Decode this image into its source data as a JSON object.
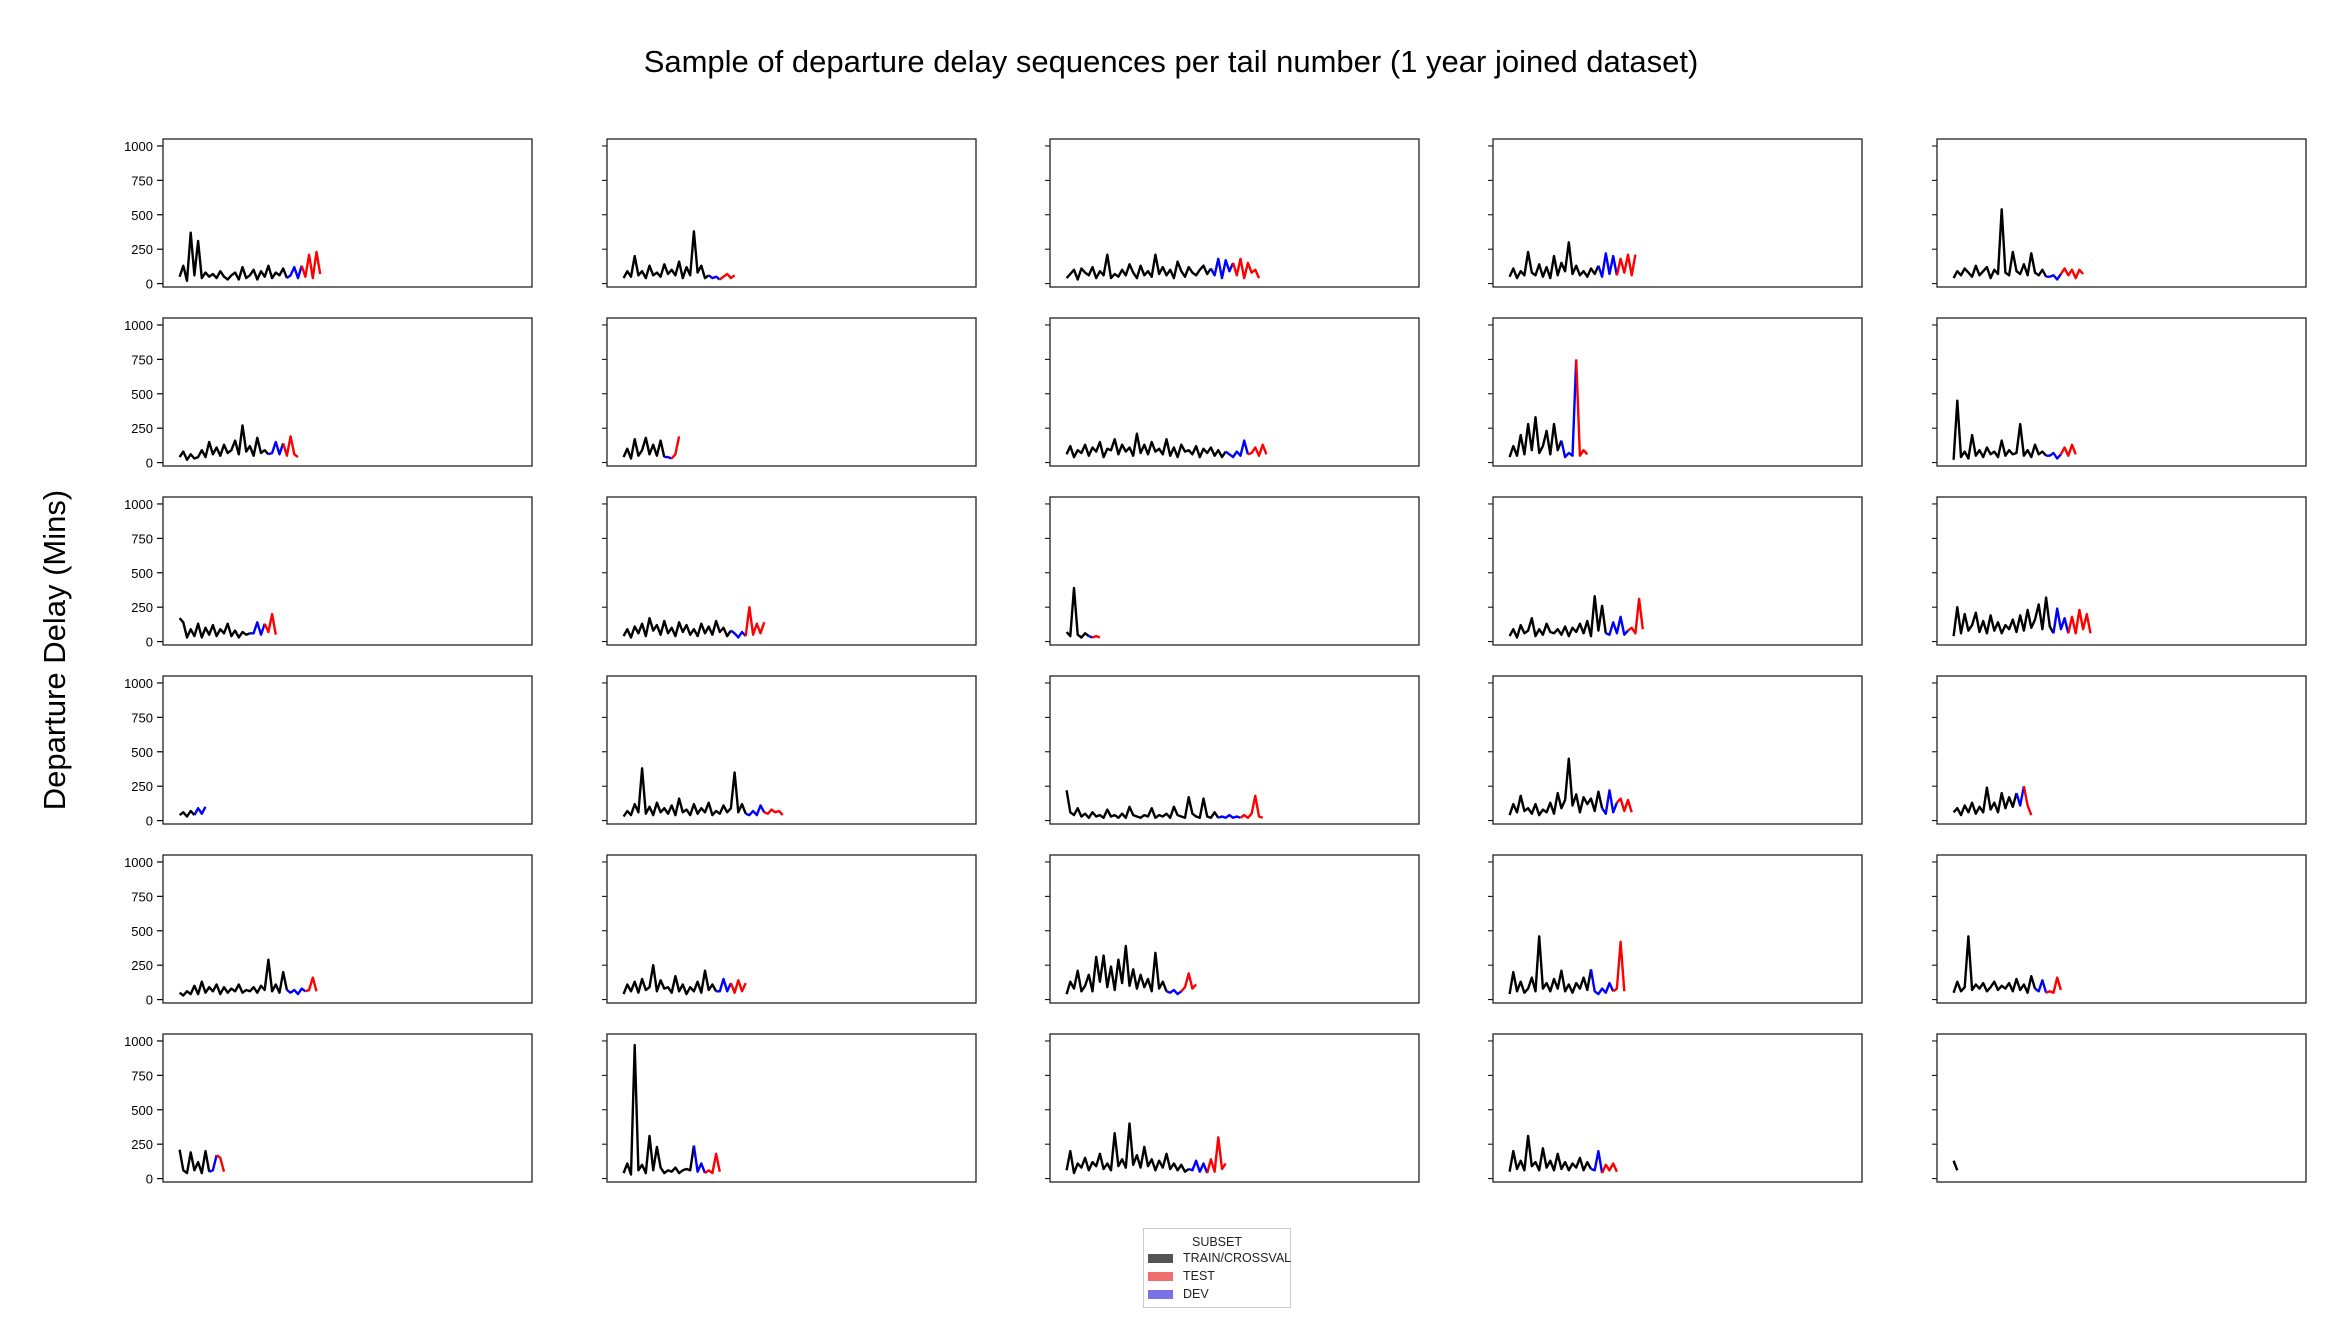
{
  "title": "Sample of departure delay sequences per tail number (1 year joined dataset)",
  "ylabel": "Departure Delay (Mins)",
  "legend": {
    "title": "SUBSET",
    "items": [
      {
        "label": "TRAIN/CROSSVAL",
        "color": "#555555"
      },
      {
        "label": "TEST",
        "color": "#ef6f6f"
      },
      {
        "label": "DEV",
        "color": "#7a72e6"
      }
    ]
  },
  "chart_data": {
    "type": "line",
    "layout": "small multiples, 6 rows x 5 columns, shared y axis",
    "ylim": [
      0,
      1000
    ],
    "yticks": [
      0,
      250,
      500,
      750,
      1000
    ],
    "x_ticks_labeled": false,
    "series_colors": {
      "train": "#000000",
      "dev": "#0000ff",
      "test": "#ff0000"
    },
    "panels": [
      {
        "train": [
          50,
          130,
          20,
          370,
          60,
          310,
          40,
          80,
          50,
          70,
          40,
          90,
          50,
          30,
          60,
          80,
          30,
          120,
          40,
          60,
          100,
          30,
          90,
          50,
          130,
          40,
          80,
          60,
          110,
          40
        ],
        "dev": [
          60,
          120,
          40,
          130
        ],
        "test": [
          50,
          210,
          40,
          230,
          70
        ]
      },
      {
        "train": [
          40,
          90,
          50,
          200,
          60,
          90,
          40,
          130,
          60,
          80,
          50,
          140,
          70,
          100,
          60,
          160,
          40,
          120,
          60,
          380,
          80,
          130,
          40,
          60
        ],
        "dev": [
          40,
          50,
          30
        ],
        "test": [
          50,
          70,
          40,
          60
        ]
      },
      {
        "train": [
          40,
          70,
          100,
          30,
          110,
          80,
          60,
          120,
          40,
          90,
          60,
          210,
          40,
          70,
          50,
          100,
          60,
          140,
          80,
          40,
          130,
          60,
          90,
          50,
          210,
          70,
          120,
          60,
          100,
          40,
          160,
          90,
          50,
          120,
          80,
          60,
          100,
          130,
          70,
          110
        ],
        "dev": [
          60,
          180,
          40,
          170,
          90,
          150
        ],
        "test": [
          60,
          180,
          40,
          150,
          80,
          100,
          40
        ]
      },
      {
        "train": [
          50,
          110,
          40,
          90,
          60,
          230,
          80,
          60,
          140,
          50,
          120,
          40,
          200,
          60,
          150,
          90,
          300,
          70,
          130,
          60,
          90,
          50,
          110,
          70,
          130
        ],
        "dev": [
          50,
          220,
          70,
          200,
          60
        ],
        "test": [
          180,
          80,
          210,
          60,
          210
        ]
      },
      {
        "train": [
          40,
          90,
          60,
          110,
          80,
          50,
          130,
          60,
          90,
          120,
          40,
          100,
          70,
          540,
          80,
          60,
          230,
          90,
          70,
          140,
          60,
          220,
          80,
          60,
          100,
          50
        ],
        "dev": [
          50,
          60,
          30,
          70
        ],
        "test": [
          110,
          60,
          100,
          40,
          100,
          70
        ]
      },
      {
        "train": [
          40,
          80,
          20,
          60,
          30,
          40,
          90,
          40,
          150,
          60,
          110,
          50,
          130,
          70,
          90,
          160,
          60,
          270,
          80,
          120,
          50,
          180,
          70,
          90,
          60
        ],
        "dev": [
          70,
          150,
          60,
          140
        ],
        "test": [
          50,
          190,
          60,
          40
        ]
      },
      {
        "train": [
          40,
          100,
          30,
          170,
          50,
          90,
          180,
          60,
          130,
          50,
          160,
          40
        ],
        "dev": [
          40,
          30
        ],
        "test": [
          60,
          190
        ]
      },
      {
        "train": [
          60,
          120,
          40,
          90,
          70,
          130,
          50,
          110,
          80,
          150,
          40,
          100,
          90,
          170,
          60,
          130,
          80,
          110,
          50,
          210,
          70,
          130,
          60,
          150,
          80,
          100,
          60,
          170,
          50,
          110,
          40,
          130,
          80,
          90,
          60,
          120,
          40,
          100,
          70,
          110,
          50,
          90,
          40,
          80
        ],
        "dev": [
          60,
          40,
          80,
          50,
          160,
          60
        ],
        "test": [
          70,
          110,
          50,
          130,
          60
        ]
      },
      {
        "train": [
          40,
          120,
          50,
          200,
          60,
          280,
          90,
          330,
          70,
          120,
          230,
          60,
          280,
          90,
          160
        ],
        "dev": [
          40,
          70,
          50,
          750
        ],
        "test": [
          50,
          90,
          60
        ]
      },
      {
        "train": [
          20,
          450,
          40,
          80,
          30,
          200,
          50,
          90,
          40,
          110,
          60,
          80,
          40,
          160,
          50,
          90,
          60,
          70,
          280,
          50,
          90,
          40,
          130,
          60,
          80,
          50
        ],
        "dev": [
          50,
          70,
          30,
          60
        ],
        "test": [
          110,
          50,
          130,
          60
        ]
      },
      {
        "train": [
          170,
          140,
          30,
          90,
          40,
          130,
          30,
          100,
          50,
          120,
          40,
          90,
          60,
          130,
          40,
          80,
          30,
          70,
          50,
          60
        ],
        "dev": [
          60,
          140,
          50,
          130
        ],
        "test": [
          70,
          200,
          50
        ]
      },
      {
        "train": [
          40,
          90,
          30,
          110,
          60,
          130,
          40,
          170,
          80,
          120,
          50,
          150,
          60,
          100,
          40,
          140,
          70,
          120,
          50,
          90,
          40,
          130,
          60,
          110,
          50,
          150,
          70,
          100,
          40,
          80
        ],
        "dev": [
          60,
          30,
          70,
          40
        ],
        "test": [
          250,
          50,
          130,
          60,
          140
        ]
      },
      {
        "train": [
          70,
          40,
          390,
          50,
          30,
          60,
          40
        ],
        "dev": [
          30
        ],
        "test": [
          40,
          30
        ]
      },
      {
        "train": [
          40,
          90,
          30,
          120,
          60,
          80,
          170,
          40,
          90,
          50,
          130,
          70,
          60,
          90,
          50,
          110,
          40,
          100,
          70,
          130,
          60,
          150,
          40,
          330,
          80,
          260,
          60
        ],
        "dev": [
          50,
          140,
          60,
          180,
          50,
          80
        ],
        "test": [
          100,
          60,
          310,
          90
        ]
      },
      {
        "train": [
          40,
          250,
          60,
          200,
          80,
          120,
          210,
          70,
          150,
          60,
          190,
          80,
          140,
          60,
          120,
          90,
          160,
          70,
          190,
          80,
          230,
          100,
          160,
          270,
          90,
          320,
          110,
          60
        ],
        "dev": [
          240,
          90,
          170,
          60
        ],
        "test": [
          180,
          60,
          230,
          90,
          200,
          60
        ]
      },
      {
        "train": [
          40,
          60,
          30,
          70,
          40
        ],
        "dev": [
          90,
          50,
          100
        ]
      },
      {
        "train": [
          30,
          70,
          40,
          120,
          60,
          380,
          50,
          100,
          40,
          130,
          60,
          90,
          50,
          110,
          40,
          160,
          60,
          80,
          40,
          120,
          50,
          90,
          60,
          130,
          40,
          70,
          50,
          110,
          60,
          90,
          350,
          60,
          120,
          50
        ],
        "dev": [
          40,
          70,
          40,
          110,
          60
        ],
        "test": [
          50,
          80,
          60,
          70,
          40
        ]
      },
      {
        "train": [
          220,
          60,
          40,
          90,
          30,
          50,
          20,
          60,
          30,
          40,
          20,
          80,
          30,
          40,
          20,
          50,
          20,
          100,
          40,
          30,
          20,
          40,
          30,
          90,
          20,
          40,
          30,
          50,
          20,
          100,
          40,
          30,
          20,
          170,
          50,
          30,
          20,
          160,
          30,
          20,
          60,
          20
        ],
        "dev": [
          30,
          20,
          40,
          20,
          30,
          20
        ],
        "test": [
          40,
          20,
          50,
          180,
          30,
          20
        ]
      },
      {
        "train": [
          40,
          120,
          60,
          180,
          70,
          90,
          50,
          120,
          40,
          80,
          60,
          130,
          50,
          200,
          90,
          150,
          450,
          110,
          190,
          60,
          170,
          120,
          160,
          70,
          210,
          90
        ],
        "dev": [
          50,
          220,
          60,
          130
        ],
        "test": [
          160,
          70,
          150,
          60
        ]
      },
      {
        "train": [
          60,
          90,
          40,
          110,
          60,
          130,
          50,
          100,
          60,
          240,
          80,
          130,
          60,
          200,
          90,
          170,
          100,
          200
        ],
        "dev": [
          110,
          250
        ],
        "test": [
          110,
          40
        ]
      },
      {
        "train": [
          50,
          30,
          60,
          40,
          100,
          40,
          130,
          50,
          90,
          60,
          110,
          40,
          90,
          50,
          80,
          60,
          110,
          50,
          70,
          60,
          90,
          50,
          100,
          70,
          290,
          60,
          110,
          50,
          200,
          70
        ],
        "dev": [
          50,
          70,
          40,
          80,
          60
        ],
        "test": [
          70,
          160,
          60
        ]
      },
      {
        "train": [
          40,
          110,
          60,
          130,
          50,
          150,
          70,
          90,
          250,
          60,
          140,
          80,
          90,
          50,
          170,
          60,
          110,
          40,
          90,
          60,
          130,
          50,
          210,
          70,
          110,
          60
        ],
        "dev": [
          60,
          150,
          60,
          120
        ],
        "test": [
          50,
          140,
          60,
          120
        ]
      },
      {
        "train": [
          40,
          130,
          80,
          210,
          60,
          100,
          180,
          60,
          310,
          130,
          320,
          90,
          240,
          70,
          290,
          120,
          390,
          100,
          220,
          80,
          180,
          90,
          150,
          60,
          340,
          80,
          130,
          60
        ],
        "dev": [
          50,
          70,
          40,
          60
        ],
        "test": [
          90,
          190,
          80,
          110
        ]
      },
      {
        "train": [
          40,
          200,
          60,
          130,
          50,
          80,
          160,
          60,
          460,
          80,
          120,
          60,
          150,
          80,
          210,
          60,
          110,
          50,
          120,
          80,
          160,
          70,
          220
        ],
        "dev": [
          60,
          40,
          80,
          50,
          120,
          60
        ],
        "test": [
          80,
          420,
          60
        ]
      },
      {
        "train": [
          50,
          130,
          60,
          90,
          460,
          70,
          110,
          80,
          120,
          60,
          90,
          130,
          70,
          100,
          80,
          120,
          60,
          150,
          70,
          110,
          50,
          170,
          80
        ],
        "dev": [
          60,
          140,
          50
        ],
        "test": [
          60,
          50,
          160,
          70
        ]
      },
      {
        "train": [
          210,
          60,
          40,
          190,
          60,
          120,
          40,
          200,
          50
        ],
        "dev": [
          60,
          170
        ],
        "test": [
          150,
          50
        ]
      },
      {
        "train": [
          40,
          110,
          30,
          970,
          60,
          100,
          40,
          310,
          60,
          230,
          80,
          40,
          60,
          50,
          80,
          40,
          60,
          70,
          60,
          240
        ],
        "dev": [
          50,
          110,
          40
        ],
        "test": [
          60,
          40,
          180,
          50
        ]
      },
      {
        "train": [
          60,
          200,
          40,
          110,
          80,
          150,
          60,
          120,
          90,
          180,
          70,
          110,
          60,
          330,
          90,
          140,
          80,
          400,
          100,
          170,
          80,
          230,
          90,
          140,
          60,
          130,
          80,
          180,
          70,
          110,
          60,
          100,
          50,
          70
        ],
        "dev": [
          60,
          130,
          50,
          110,
          40
        ],
        "test": [
          140,
          50,
          300,
          70,
          110
        ]
      },
      {
        "train": [
          50,
          200,
          70,
          130,
          60,
          310,
          90,
          120,
          60,
          220,
          80,
          130,
          60,
          180,
          70,
          120,
          60,
          110,
          80,
          150,
          60,
          120,
          70
        ],
        "dev": [
          60,
          200,
          40
        ],
        "test": [
          100,
          60,
          110,
          50
        ]
      },
      {
        "train": [
          130,
          60
        ]
      }
    ]
  }
}
